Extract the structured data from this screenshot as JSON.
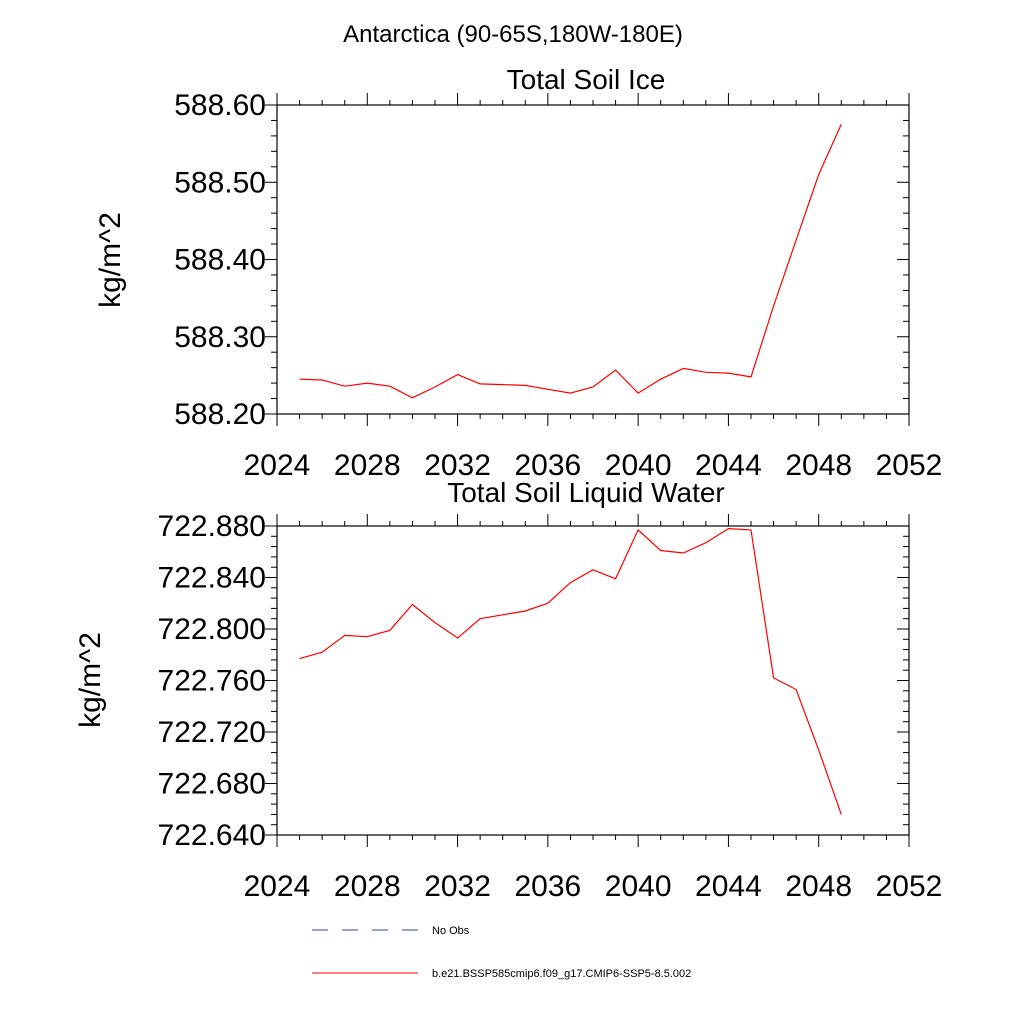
{
  "figure_title": "Antarctica (90-65S,180W-180E)",
  "colors": {
    "model": "#ff0000",
    "obs": "#3b4a8a",
    "axis": "#000000"
  },
  "legend": {
    "obs_label": "No Obs",
    "model_label": "b.e21.BSSP585cmip6.f09_g17.CMIP6-SSP5-8.5.002"
  },
  "chart_data": [
    {
      "type": "line",
      "title": "Total Soil Ice",
      "xlabel": "",
      "ylabel": "kg/m^2",
      "xlim": [
        2024,
        2052
      ],
      "ylim": [
        588.2,
        588.6
      ],
      "x_ticks": [
        2024,
        2028,
        2032,
        2036,
        2040,
        2044,
        2048,
        2052
      ],
      "y_ticks": [
        588.2,
        588.3,
        588.4,
        588.5,
        588.6
      ],
      "y_tick_labels": [
        "588.20",
        "588.30",
        "588.40",
        "588.50",
        "588.60"
      ],
      "grid": false,
      "series": [
        {
          "name": "b.e21.BSSP585cmip6.f09_g17.CMIP6-SSP5-8.5.002",
          "x": [
            2025,
            2026,
            2027,
            2028,
            2029,
            2030,
            2031,
            2032,
            2033,
            2034,
            2035,
            2036,
            2037,
            2038,
            2039,
            2040,
            2041,
            2042,
            2043,
            2044,
            2045,
            2046,
            2047,
            2048,
            2049
          ],
          "y": [
            588.245,
            588.244,
            588.236,
            588.24,
            588.236,
            588.221,
            588.235,
            588.251,
            588.239,
            588.238,
            588.237,
            588.232,
            588.227,
            588.235,
            588.257,
            588.227,
            588.245,
            588.259,
            588.254,
            588.253,
            588.248,
            588.34,
            588.425,
            588.51,
            588.575
          ]
        }
      ]
    },
    {
      "type": "line",
      "title": "Total Soil Liquid Water",
      "xlabel": "",
      "ylabel": "kg/m^2",
      "xlim": [
        2024,
        2052
      ],
      "ylim": [
        722.64,
        722.88
      ],
      "x_ticks": [
        2024,
        2028,
        2032,
        2036,
        2040,
        2044,
        2048,
        2052
      ],
      "y_ticks": [
        722.64,
        722.68,
        722.72,
        722.76,
        722.8,
        722.84,
        722.88
      ],
      "y_tick_labels": [
        "722.640",
        "722.680",
        "722.720",
        "722.760",
        "722.800",
        "722.840",
        "722.880"
      ],
      "grid": false,
      "series": [
        {
          "name": "b.e21.BSSP585cmip6.f09_g17.CMIP6-SSP5-8.5.002",
          "x": [
            2025,
            2026,
            2027,
            2028,
            2029,
            2030,
            2031,
            2032,
            2033,
            2034,
            2035,
            2036,
            2037,
            2038,
            2039,
            2040,
            2041,
            2042,
            2043,
            2044,
            2045,
            2046,
            2047,
            2048,
            2049
          ],
          "y": [
            722.777,
            722.782,
            722.795,
            722.794,
            722.799,
            722.819,
            722.805,
            722.793,
            722.808,
            722.811,
            722.814,
            722.82,
            722.836,
            722.846,
            722.839,
            722.877,
            722.861,
            722.859,
            722.867,
            722.878,
            722.877,
            722.762,
            722.753,
            722.706,
            722.656
          ]
        }
      ]
    }
  ]
}
